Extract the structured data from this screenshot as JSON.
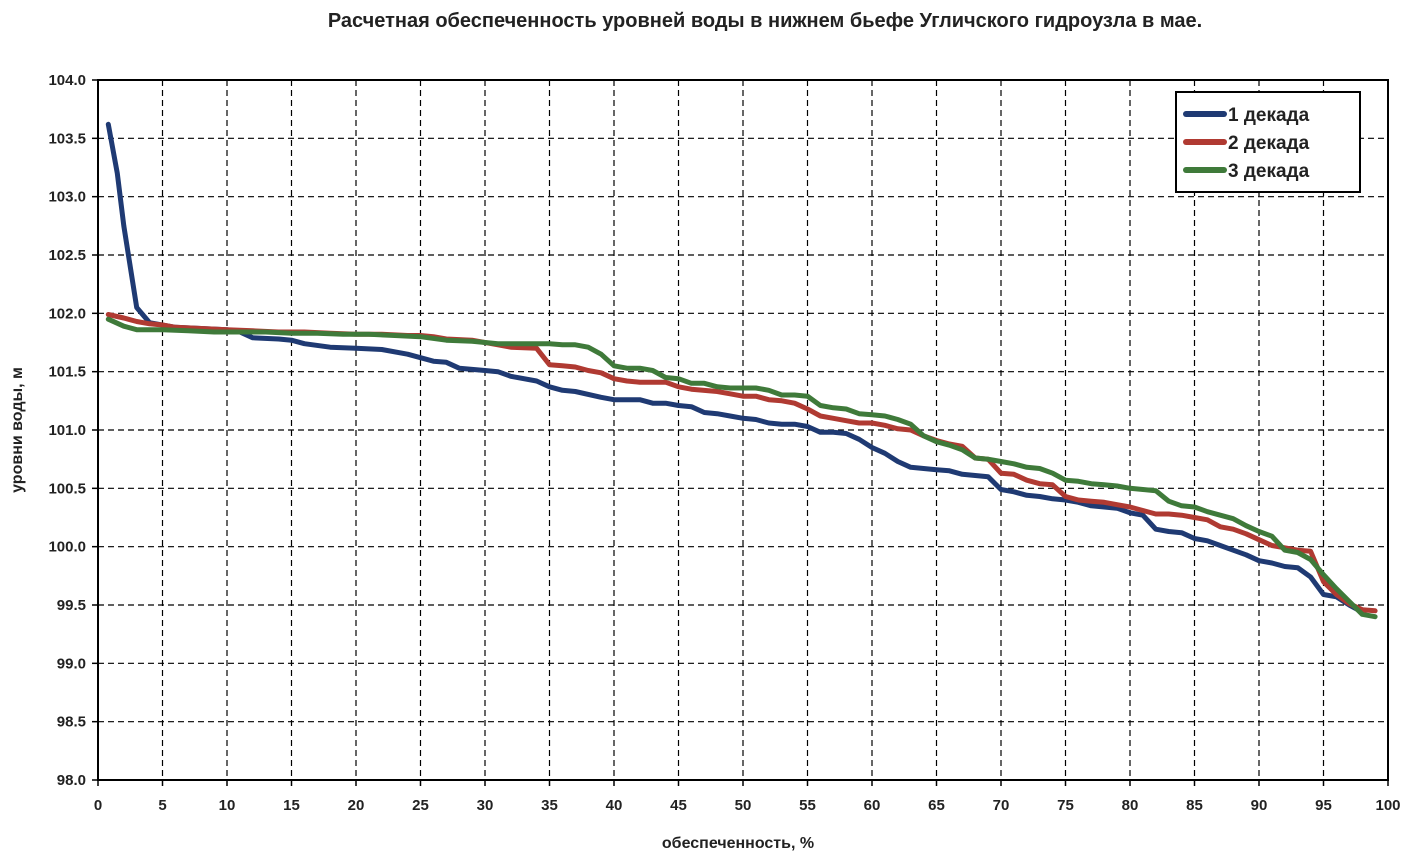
{
  "chart_data": {
    "type": "line",
    "title": "Расчетная обеспеченность уровней воды в нижнем бьефе Угличского гидроузла в  мае.",
    "xlabel": "обеспеченность,  %",
    "ylabel": "уровни воды, м",
    "xlim": [
      0,
      100
    ],
    "ylim": [
      98.0,
      104.0
    ],
    "grid": true,
    "legend_position": "top-right",
    "x_ticks": [
      "0",
      "5",
      "10",
      "15",
      "20",
      "25",
      "30",
      "35",
      "40",
      "45",
      "50",
      "55",
      "60",
      "65",
      "70",
      "75",
      "80",
      "85",
      "90",
      "95",
      "100"
    ],
    "y_ticks": [
      "98.0",
      "98.5",
      "99.0",
      "99.5",
      "100.0",
      "100.5",
      "101.0",
      "101.5",
      "102.0",
      "102.5",
      "103.0",
      "103.5",
      "104.0"
    ],
    "series": [
      {
        "name": "1 декада",
        "color": "#1f3a73",
        "points": [
          [
            0.8,
            103.62
          ],
          [
            1.5,
            103.2
          ],
          [
            2,
            102.75
          ],
          [
            3,
            102.05
          ],
          [
            4,
            101.92
          ],
          [
            6,
            101.88
          ],
          [
            8,
            101.87
          ],
          [
            10,
            101.86
          ],
          [
            11,
            101.84
          ],
          [
            12,
            101.79
          ],
          [
            14,
            101.78
          ],
          [
            15,
            101.77
          ],
          [
            16,
            101.74
          ],
          [
            18,
            101.71
          ],
          [
            20,
            101.7
          ],
          [
            22,
            101.69
          ],
          [
            24,
            101.65
          ],
          [
            25,
            101.62
          ],
          [
            26,
            101.59
          ],
          [
            27,
            101.58
          ],
          [
            28,
            101.53
          ],
          [
            30,
            101.51
          ],
          [
            31,
            101.5
          ],
          [
            32,
            101.46
          ],
          [
            34,
            101.42
          ],
          [
            35,
            101.37
          ],
          [
            36,
            101.34
          ],
          [
            37,
            101.33
          ],
          [
            39,
            101.28
          ],
          [
            40,
            101.26
          ],
          [
            42,
            101.26
          ],
          [
            43,
            101.23
          ],
          [
            44,
            101.23
          ],
          [
            45,
            101.21
          ],
          [
            46,
            101.2
          ],
          [
            47,
            101.15
          ],
          [
            48,
            101.14
          ],
          [
            49,
            101.12
          ],
          [
            50,
            101.1
          ],
          [
            51,
            101.09
          ],
          [
            52,
            101.06
          ],
          [
            53,
            101.05
          ],
          [
            54,
            101.05
          ],
          [
            55,
            101.03
          ],
          [
            56,
            100.98
          ],
          [
            57,
            100.98
          ],
          [
            58,
            100.97
          ],
          [
            59,
            100.92
          ],
          [
            60,
            100.85
          ],
          [
            61,
            100.8
          ],
          [
            62,
            100.73
          ],
          [
            63,
            100.68
          ],
          [
            64,
            100.67
          ],
          [
            65,
            100.66
          ],
          [
            66,
            100.65
          ],
          [
            67,
            100.62
          ],
          [
            68,
            100.61
          ],
          [
            69,
            100.6
          ],
          [
            70,
            100.49
          ],
          [
            71,
            100.47
          ],
          [
            72,
            100.44
          ],
          [
            73,
            100.43
          ],
          [
            74,
            100.41
          ],
          [
            75,
            100.4
          ],
          [
            76,
            100.38
          ],
          [
            77,
            100.35
          ],
          [
            78,
            100.34
          ],
          [
            79,
            100.33
          ],
          [
            80,
            100.29
          ],
          [
            81,
            100.27
          ],
          [
            82,
            100.15
          ],
          [
            83,
            100.13
          ],
          [
            84,
            100.12
          ],
          [
            85,
            100.07
          ],
          [
            86,
            100.05
          ],
          [
            87,
            100.01
          ],
          [
            88,
            99.97
          ],
          [
            89,
            99.93
          ],
          [
            90,
            99.88
          ],
          [
            91,
            99.86
          ],
          [
            92,
            99.83
          ],
          [
            93,
            99.82
          ],
          [
            94,
            99.74
          ],
          [
            95,
            99.59
          ],
          [
            96,
            99.57
          ],
          [
            97,
            99.5
          ],
          [
            98,
            99.44
          ]
        ]
      },
      {
        "name": "2 декада",
        "color": "#b03a32",
        "points": [
          [
            0.8,
            101.99
          ],
          [
            2,
            101.96
          ],
          [
            3,
            101.93
          ],
          [
            4,
            101.91
          ],
          [
            5,
            101.9
          ],
          [
            6,
            101.88
          ],
          [
            8,
            101.87
          ],
          [
            10,
            101.86
          ],
          [
            12,
            101.85
          ],
          [
            14,
            101.84
          ],
          [
            16,
            101.84
          ],
          [
            18,
            101.83
          ],
          [
            20,
            101.82
          ],
          [
            22,
            101.82
          ],
          [
            24,
            101.81
          ],
          [
            25,
            101.81
          ],
          [
            26,
            101.8
          ],
          [
            27,
            101.78
          ],
          [
            29,
            101.77
          ],
          [
            31,
            101.73
          ],
          [
            32,
            101.71
          ],
          [
            34,
            101.7
          ],
          [
            35,
            101.56
          ],
          [
            36,
            101.55
          ],
          [
            37,
            101.54
          ],
          [
            38,
            101.51
          ],
          [
            39,
            101.49
          ],
          [
            40,
            101.44
          ],
          [
            41,
            101.42
          ],
          [
            42,
            101.41
          ],
          [
            44,
            101.41
          ],
          [
            45,
            101.37
          ],
          [
            46,
            101.35
          ],
          [
            48,
            101.33
          ],
          [
            49,
            101.31
          ],
          [
            50,
            101.29
          ],
          [
            51,
            101.29
          ],
          [
            52,
            101.26
          ],
          [
            53,
            101.25
          ],
          [
            54,
            101.23
          ],
          [
            55,
            101.18
          ],
          [
            56,
            101.12
          ],
          [
            57,
            101.1
          ],
          [
            58,
            101.08
          ],
          [
            59,
            101.06
          ],
          [
            60,
            101.06
          ],
          [
            61,
            101.04
          ],
          [
            62,
            101.01
          ],
          [
            63,
            101.0
          ],
          [
            64,
            100.95
          ],
          [
            65,
            100.91
          ],
          [
            66,
            100.88
          ],
          [
            67,
            100.86
          ],
          [
            68,
            100.76
          ],
          [
            69,
            100.75
          ],
          [
            70,
            100.63
          ],
          [
            71,
            100.62
          ],
          [
            72,
            100.57
          ],
          [
            73,
            100.54
          ],
          [
            74,
            100.53
          ],
          [
            75,
            100.43
          ],
          [
            76,
            100.4
          ],
          [
            77,
            100.39
          ],
          [
            78,
            100.38
          ],
          [
            79,
            100.36
          ],
          [
            80,
            100.34
          ],
          [
            81,
            100.31
          ],
          [
            82,
            100.28
          ],
          [
            83,
            100.28
          ],
          [
            84,
            100.27
          ],
          [
            85,
            100.25
          ],
          [
            86,
            100.23
          ],
          [
            87,
            100.17
          ],
          [
            88,
            100.15
          ],
          [
            89,
            100.11
          ],
          [
            90,
            100.06
          ],
          [
            91,
            100.01
          ],
          [
            92,
            99.99
          ],
          [
            93,
            99.97
          ],
          [
            94,
            99.96
          ],
          [
            95,
            99.7
          ],
          [
            96,
            99.59
          ],
          [
            97,
            99.51
          ],
          [
            98,
            99.46
          ],
          [
            99,
            99.45
          ]
        ]
      },
      {
        "name": "3 декада",
        "color": "#3f7a3a",
        "points": [
          [
            0.8,
            101.95
          ],
          [
            2,
            101.89
          ],
          [
            3,
            101.86
          ],
          [
            5,
            101.86
          ],
          [
            7,
            101.85
          ],
          [
            9,
            101.84
          ],
          [
            11,
            101.84
          ],
          [
            13,
            101.84
          ],
          [
            15,
            101.83
          ],
          [
            17,
            101.83
          ],
          [
            19,
            101.82
          ],
          [
            21,
            101.82
          ],
          [
            23,
            101.81
          ],
          [
            25,
            101.8
          ],
          [
            27,
            101.77
          ],
          [
            29,
            101.76
          ],
          [
            31,
            101.74
          ],
          [
            33,
            101.74
          ],
          [
            35,
            101.74
          ],
          [
            36,
            101.73
          ],
          [
            37,
            101.73
          ],
          [
            38,
            101.71
          ],
          [
            39,
            101.65
          ],
          [
            40,
            101.55
          ],
          [
            41,
            101.53
          ],
          [
            42,
            101.53
          ],
          [
            43,
            101.51
          ],
          [
            44,
            101.45
          ],
          [
            45,
            101.44
          ],
          [
            46,
            101.4
          ],
          [
            47,
            101.4
          ],
          [
            48,
            101.37
          ],
          [
            49,
            101.36
          ],
          [
            50,
            101.36
          ],
          [
            51,
            101.36
          ],
          [
            52,
            101.34
          ],
          [
            53,
            101.3
          ],
          [
            54,
            101.3
          ],
          [
            55,
            101.29
          ],
          [
            56,
            101.21
          ],
          [
            57,
            101.19
          ],
          [
            58,
            101.18
          ],
          [
            59,
            101.14
          ],
          [
            60,
            101.13
          ],
          [
            61,
            101.12
          ],
          [
            62,
            101.09
          ],
          [
            63,
            101.05
          ],
          [
            64,
            100.95
          ],
          [
            65,
            100.9
          ],
          [
            66,
            100.87
          ],
          [
            67,
            100.83
          ],
          [
            68,
            100.76
          ],
          [
            69,
            100.75
          ],
          [
            70,
            100.73
          ],
          [
            71,
            100.71
          ],
          [
            72,
            100.68
          ],
          [
            73,
            100.67
          ],
          [
            74,
            100.63
          ],
          [
            75,
            100.57
          ],
          [
            76,
            100.56
          ],
          [
            77,
            100.54
          ],
          [
            78,
            100.53
          ],
          [
            79,
            100.52
          ],
          [
            80,
            100.5
          ],
          [
            81,
            100.49
          ],
          [
            82,
            100.48
          ],
          [
            83,
            100.39
          ],
          [
            84,
            100.35
          ],
          [
            85,
            100.34
          ],
          [
            86,
            100.3
          ],
          [
            87,
            100.27
          ],
          [
            88,
            100.24
          ],
          [
            89,
            100.18
          ],
          [
            90,
            100.13
          ],
          [
            91,
            100.09
          ],
          [
            92,
            99.97
          ],
          [
            93,
            99.95
          ],
          [
            94,
            99.89
          ],
          [
            95,
            99.76
          ],
          [
            96,
            99.64
          ],
          [
            97,
            99.53
          ],
          [
            98,
            99.42
          ],
          [
            99,
            99.4
          ]
        ]
      }
    ]
  }
}
